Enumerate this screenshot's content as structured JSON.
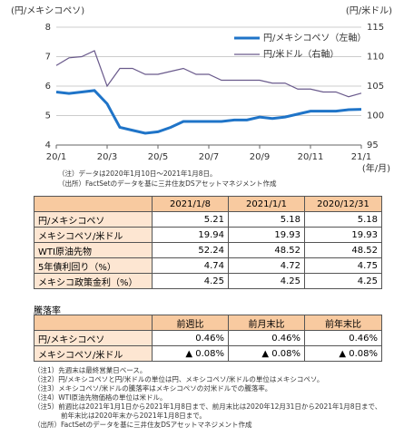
{
  "chart_data": {
    "type": "line",
    "y_axis_label": "(円/メキシコペソ)",
    "y2_axis_label": "(円/米ドル)",
    "x_axis_label": "(年/月)",
    "categories": [
      "20/1",
      null,
      null,
      null,
      "20/3",
      null,
      null,
      null,
      "20/5",
      null,
      null,
      null,
      "20/7",
      null,
      null,
      null,
      "20/9",
      null,
      null,
      null,
      "20/11",
      null,
      null,
      null,
      "21/1"
    ],
    "series": [
      {
        "name": "円/メキシコペソ（左軸）",
        "color": "#1f74c8",
        "values": [
          5.8,
          5.75,
          5.8,
          5.85,
          5.4,
          4.6,
          4.5,
          4.4,
          4.45,
          4.6,
          4.8,
          4.8,
          4.8,
          4.8,
          4.85,
          4.85,
          4.95,
          4.9,
          4.95,
          5.05,
          5.15,
          5.15,
          5.15,
          5.2,
          5.21
        ]
      },
      {
        "name": "円/米ドル（右軸）",
        "color": "#6a5a8c",
        "axis": "y2",
        "values": [
          108.5,
          109.8,
          110,
          111,
          105,
          108,
          108,
          107,
          107,
          107.5,
          108,
          107,
          107,
          106,
          106,
          106,
          106,
          105.5,
          105.5,
          104.5,
          104.5,
          104,
          104,
          103.2,
          103.8
        ]
      }
    ],
    "ylim": [
      4,
      8
    ],
    "yticks": [
      4,
      5,
      6,
      7,
      8
    ],
    "y2lim": [
      95,
      115
    ],
    "y2ticks": [
      95,
      100,
      105,
      110,
      115
    ],
    "grid": true,
    "legend": "upper right"
  },
  "chart_notes": [
    "（注）データは2020年1月10日～2021年1月8日。",
    "（出所）FactSetのデータを基に三井住友DSアセットマネジメント作成"
  ],
  "table": {
    "header": [
      "2021/1/8",
      "2021/1/1",
      "2020/12/31"
    ],
    "rows": [
      [
        "円/メキシコペソ",
        "5.21",
        "5.18",
        "5.18"
      ],
      [
        "メキシコペソ/米ドル",
        "19.94",
        "19.93",
        "19.93"
      ],
      [
        "WTI原油先物",
        "52.24",
        "48.52",
        "48.52"
      ],
      [
        "5年債利回り（%）",
        "4.74",
        "4.72",
        "4.75"
      ],
      [
        "メキシコ政策金利（%）",
        "4.25",
        "4.25",
        "4.25"
      ]
    ]
  },
  "change_table": {
    "title": "騰落率",
    "header": [
      "前週比",
      "前月末比",
      "前年末比"
    ],
    "rows": [
      [
        "円/メキシコペソ",
        "0.46%",
        "0.46%",
        "0.46%"
      ],
      [
        "メキシコペソ/米ドル",
        "▲ 0.08%",
        "▲ 0.08%",
        "▲ 0.08%"
      ]
    ]
  },
  "notes": [
    "（注1）先週末は最終営業日ベース。",
    "（注2）円/メキシコペソと円/米ドルの単位は円、メキシコペソ/米ドルの単位はメキシコペソ。",
    "（注3）メキシコペソ/米ドルの騰落率はメキシコペソの対米ドルでの騰落率。",
    "（注4）WTI原油先物価格の単位は米ドル。",
    "（注5）前週比は2021年1月1日から2021年1月8日まで、前月末比は2020年12月31日から2021年1月8日まで、前年末比は2020年末から2021年1月8日まで。",
    "（出所）FactSetのデータを基に三井住友DSアセットマネジメント作成"
  ]
}
